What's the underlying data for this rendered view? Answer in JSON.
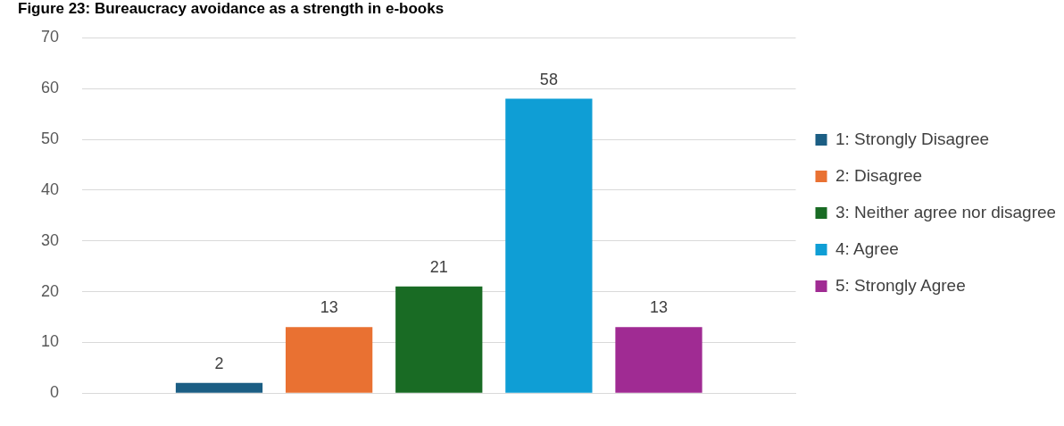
{
  "chart_data": {
    "type": "bar",
    "title": "Figure 23: Bureaucracy avoidance as a strength in e-books",
    "categories": [
      null
    ],
    "series": [
      {
        "name": "1: Strongly Disagree",
        "color": "#1b5e84",
        "values": [
          2
        ]
      },
      {
        "name": "2: Disagree",
        "color": "#e97132",
        "values": [
          13
        ]
      },
      {
        "name": "3: Neither agree nor disagree",
        "color": "#196b24",
        "values": [
          21
        ]
      },
      {
        "name": "4: Agree",
        "color": "#0f9ed5",
        "values": [
          58
        ]
      },
      {
        "name": "5: Strongly Agree",
        "color": "#a02b93",
        "values": [
          13
        ]
      }
    ],
    "ylim": [
      0,
      70
    ],
    "yticks": [
      0,
      10,
      20,
      30,
      40,
      50,
      60,
      70
    ],
    "grid": "y",
    "legend": "right",
    "data_labels": true
  }
}
